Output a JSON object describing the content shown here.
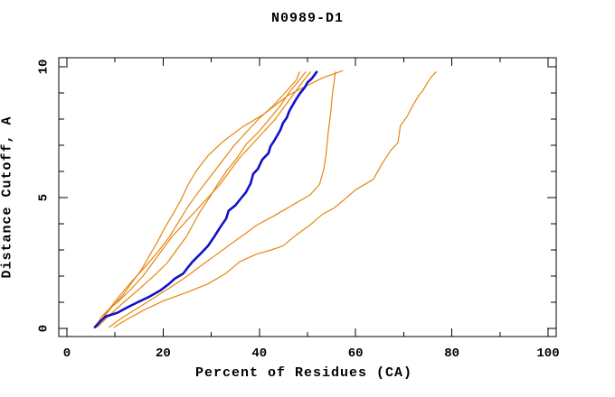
{
  "chart_data": {
    "type": "line",
    "title": "N0989-D1",
    "xlabel": "Percent of Residues (CA)",
    "ylabel": "Distance Cutoff, A",
    "xlim": [
      0,
      100
    ],
    "ylim": [
      0,
      10
    ],
    "grid": false,
    "legend": "none",
    "x_major_ticks": [
      0,
      20,
      40,
      60,
      80,
      100
    ],
    "x_minor_ticks": [
      10,
      30,
      50,
      70,
      90
    ],
    "x_tick_labels": [
      "0",
      "20",
      "40",
      "60",
      "80",
      "100"
    ],
    "y_major_ticks": [
      0,
      5,
      10
    ],
    "y_minor_ticks": [
      1,
      2,
      3,
      4,
      6,
      7,
      8,
      9
    ],
    "y_tick_labels": [
      "0",
      "5",
      "10"
    ],
    "axis_color": "#000000",
    "series": [
      {
        "id": "reference-curve-1",
        "color": "#e8850f",
        "width": 1.2,
        "points": [
          [
            6.2,
            0.05
          ],
          [
            7.5,
            0.4
          ],
          [
            9.5,
            0.85
          ],
          [
            11.5,
            1.25
          ],
          [
            13.5,
            1.75
          ],
          [
            15.5,
            2.25
          ],
          [
            17.2,
            2.8
          ],
          [
            18.8,
            3.3
          ],
          [
            20.5,
            3.9
          ],
          [
            22.3,
            4.45
          ],
          [
            23.8,
            4.95
          ],
          [
            25.2,
            5.5
          ],
          [
            26.8,
            6.0
          ],
          [
            29.3,
            6.6
          ],
          [
            32.5,
            7.15
          ],
          [
            36.5,
            7.7
          ],
          [
            41.0,
            8.2
          ],
          [
            45.9,
            8.9
          ],
          [
            49.5,
            9.25
          ],
          [
            53.5,
            9.6
          ],
          [
            57.3,
            9.85
          ]
        ]
      },
      {
        "id": "reference-curve-2",
        "color": "#e8850f",
        "width": 1.2,
        "points": [
          [
            6.0,
            0.05
          ],
          [
            7.2,
            0.45
          ],
          [
            8.8,
            0.75
          ],
          [
            10.8,
            1.05
          ],
          [
            13.3,
            1.5
          ],
          [
            15.8,
            2.0
          ],
          [
            17.8,
            2.5
          ],
          [
            19.8,
            3.0
          ],
          [
            21.8,
            3.5
          ],
          [
            24.3,
            4.0
          ],
          [
            26.8,
            4.5
          ],
          [
            29.3,
            5.0
          ],
          [
            31.8,
            5.5
          ],
          [
            33.8,
            6.0
          ],
          [
            35.8,
            6.5
          ],
          [
            38.3,
            7.0
          ],
          [
            40.8,
            7.5
          ],
          [
            43.3,
            8.0
          ],
          [
            45.3,
            8.5
          ],
          [
            47.3,
            9.0
          ],
          [
            48.9,
            9.4
          ],
          [
            50.6,
            9.8
          ]
        ]
      },
      {
        "id": "reference-curve-3",
        "color": "#e8850f",
        "width": 1.2,
        "points": [
          [
            6.5,
            0.08
          ],
          [
            8.8,
            0.5
          ],
          [
            11.8,
            1.0
          ],
          [
            15.3,
            1.55
          ],
          [
            18.3,
            2.05
          ],
          [
            20.8,
            2.5
          ],
          [
            22.8,
            3.0
          ],
          [
            24.8,
            3.5
          ],
          [
            26.3,
            4.0
          ],
          [
            27.8,
            4.5
          ],
          [
            29.8,
            5.05
          ],
          [
            31.3,
            5.5
          ],
          [
            33.3,
            6.05
          ],
          [
            35.3,
            6.5
          ],
          [
            37.3,
            7.05
          ],
          [
            39.8,
            7.5
          ],
          [
            42.3,
            8.05
          ],
          [
            44.3,
            8.5
          ],
          [
            46.3,
            9.05
          ],
          [
            47.9,
            9.4
          ],
          [
            49.6,
            9.8
          ]
        ]
      },
      {
        "id": "reference-curve-4",
        "color": "#e8850f",
        "width": 1.2,
        "points": [
          [
            6.3,
            0.06
          ],
          [
            8.0,
            0.55
          ],
          [
            10.3,
            1.1
          ],
          [
            13.0,
            1.7
          ],
          [
            16.0,
            2.3
          ],
          [
            18.8,
            2.9
          ],
          [
            21.3,
            3.5
          ],
          [
            23.3,
            4.1
          ],
          [
            25.3,
            4.7
          ],
          [
            27.3,
            5.2
          ],
          [
            29.8,
            5.8
          ],
          [
            32.3,
            6.4
          ],
          [
            34.8,
            7.0
          ],
          [
            37.3,
            7.5
          ],
          [
            39.8,
            8.0
          ],
          [
            42.8,
            8.5
          ],
          [
            45.3,
            9.0
          ],
          [
            47.7,
            9.5
          ],
          [
            48.3,
            9.8
          ]
        ]
      },
      {
        "id": "reference-curve-5",
        "color": "#e8850f",
        "width": 1.2,
        "points": [
          [
            8.8,
            0.05
          ],
          [
            11.0,
            0.35
          ],
          [
            14.0,
            0.7
          ],
          [
            17.5,
            1.1
          ],
          [
            20.5,
            1.45
          ],
          [
            23.0,
            1.75
          ],
          [
            25.0,
            2.0
          ],
          [
            27.5,
            2.35
          ],
          [
            30.5,
            2.75
          ],
          [
            33.5,
            3.15
          ],
          [
            36.5,
            3.55
          ],
          [
            39.5,
            3.95
          ],
          [
            43.0,
            4.3
          ],
          [
            47.2,
            4.75
          ],
          [
            50.5,
            5.1
          ],
          [
            52.5,
            5.5
          ],
          [
            53.4,
            6.1
          ],
          [
            53.9,
            6.7
          ],
          [
            54.3,
            7.5
          ],
          [
            54.8,
            8.2
          ],
          [
            55.2,
            9.0
          ],
          [
            55.8,
            9.8
          ]
        ]
      },
      {
        "id": "reference-curve-6",
        "color": "#e8850f",
        "width": 1.2,
        "points": [
          [
            9.8,
            0.05
          ],
          [
            12.5,
            0.35
          ],
          [
            16.0,
            0.7
          ],
          [
            20.0,
            1.05
          ],
          [
            24.5,
            1.35
          ],
          [
            29.3,
            1.7
          ],
          [
            33.0,
            2.1
          ],
          [
            35.9,
            2.55
          ],
          [
            39.5,
            2.85
          ],
          [
            42.5,
            3.0
          ],
          [
            44.9,
            3.15
          ],
          [
            47.5,
            3.55
          ],
          [
            50.5,
            3.95
          ],
          [
            53.0,
            4.35
          ],
          [
            55.5,
            4.6
          ],
          [
            57.5,
            4.9
          ],
          [
            60.0,
            5.3
          ],
          [
            63.7,
            5.7
          ],
          [
            65.5,
            6.3
          ],
          [
            67.3,
            6.8
          ],
          [
            68.8,
            7.1
          ],
          [
            69.3,
            7.75
          ],
          [
            70.7,
            8.1
          ],
          [
            72.0,
            8.55
          ],
          [
            73.1,
            8.9
          ],
          [
            74.0,
            9.1
          ],
          [
            74.8,
            9.35
          ],
          [
            75.7,
            9.6
          ],
          [
            76.7,
            9.8
          ]
        ]
      },
      {
        "id": "highlighted-model-curve",
        "color": "#1111cc",
        "width": 2.6,
        "points": [
          [
            5.8,
            0.05
          ],
          [
            6.8,
            0.25
          ],
          [
            8.0,
            0.45
          ],
          [
            10.5,
            0.6
          ],
          [
            12.5,
            0.8
          ],
          [
            14.7,
            1.0
          ],
          [
            17.0,
            1.2
          ],
          [
            19.4,
            1.45
          ],
          [
            21.2,
            1.7
          ],
          [
            22.4,
            1.9
          ],
          [
            24.2,
            2.1
          ],
          [
            25.2,
            2.35
          ],
          [
            26.1,
            2.55
          ],
          [
            28.0,
            2.9
          ],
          [
            29.3,
            3.15
          ],
          [
            30.6,
            3.5
          ],
          [
            31.8,
            3.85
          ],
          [
            33.1,
            4.2
          ],
          [
            33.6,
            4.5
          ],
          [
            35.0,
            4.7
          ],
          [
            36.3,
            5.0
          ],
          [
            37.2,
            5.2
          ],
          [
            38.2,
            5.55
          ],
          [
            38.7,
            5.9
          ],
          [
            39.7,
            6.1
          ],
          [
            40.6,
            6.45
          ],
          [
            41.9,
            6.7
          ],
          [
            42.3,
            6.95
          ],
          [
            43.0,
            7.15
          ],
          [
            43.8,
            7.4
          ],
          [
            44.4,
            7.6
          ],
          [
            44.9,
            7.85
          ],
          [
            45.7,
            8.05
          ],
          [
            46.2,
            8.3
          ],
          [
            46.8,
            8.5
          ],
          [
            47.6,
            8.75
          ],
          [
            48.5,
            9.0
          ],
          [
            49.4,
            9.2
          ],
          [
            50.0,
            9.4
          ],
          [
            50.9,
            9.55
          ],
          [
            51.9,
            9.8
          ]
        ]
      }
    ]
  }
}
